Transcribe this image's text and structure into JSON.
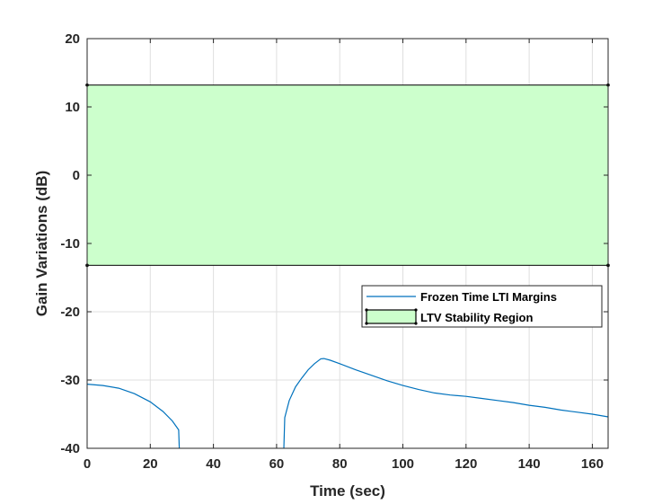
{
  "chart_data": {
    "type": "line",
    "title": "",
    "xlabel": "Time (sec)",
    "ylabel": "Gain Variations (dB)",
    "xlim": [
      0,
      165
    ],
    "ylim": [
      -40,
      20
    ],
    "xticks": [
      0,
      20,
      40,
      60,
      80,
      100,
      120,
      140,
      160
    ],
    "yticks": [
      -40,
      -30,
      -20,
      -10,
      0,
      10,
      20
    ],
    "grid": true,
    "legend_position": "right, middle",
    "region": {
      "name": "LTV Stability Region",
      "type": "area",
      "y_range": [
        -13.2,
        13.2
      ],
      "x_range": [
        0,
        165
      ],
      "fill_color": "#ccffcc",
      "edge_color": "#000000"
    },
    "series": [
      {
        "name": "Frozen Time LTI Margins",
        "color": "#0072bd",
        "segments": [
          [
            [
              0,
              -30.6
            ],
            [
              5,
              -30.8
            ],
            [
              10,
              -31.2
            ],
            [
              15,
              -32.0
            ],
            [
              20,
              -33.2
            ],
            [
              24,
              -34.6
            ],
            [
              27,
              -36.0
            ],
            [
              29,
              -37.3
            ],
            [
              29.2,
              -40
            ]
          ],
          [
            [
              62.3,
              -40
            ],
            [
              62.6,
              -35.5
            ],
            [
              64,
              -33.0
            ],
            [
              66,
              -31.0
            ],
            [
              68,
              -29.7
            ],
            [
              70,
              -28.5
            ],
            [
              72,
              -27.6
            ],
            [
              74,
              -26.9
            ],
            [
              75,
              -26.85
            ],
            [
              77,
              -27.1
            ],
            [
              80,
              -27.6
            ],
            [
              85,
              -28.5
            ],
            [
              90,
              -29.3
            ],
            [
              95,
              -30.1
            ],
            [
              100,
              -30.8
            ],
            [
              105,
              -31.4
            ],
            [
              110,
              -31.9
            ],
            [
              115,
              -32.2
            ],
            [
              120,
              -32.4
            ],
            [
              125,
              -32.7
            ],
            [
              130,
              -33.0
            ],
            [
              135,
              -33.3
            ],
            [
              140,
              -33.7
            ],
            [
              145,
              -34.0
            ],
            [
              150,
              -34.4
            ],
            [
              155,
              -34.7
            ],
            [
              160,
              -35.0
            ],
            [
              165,
              -35.4
            ]
          ]
        ]
      }
    ]
  }
}
